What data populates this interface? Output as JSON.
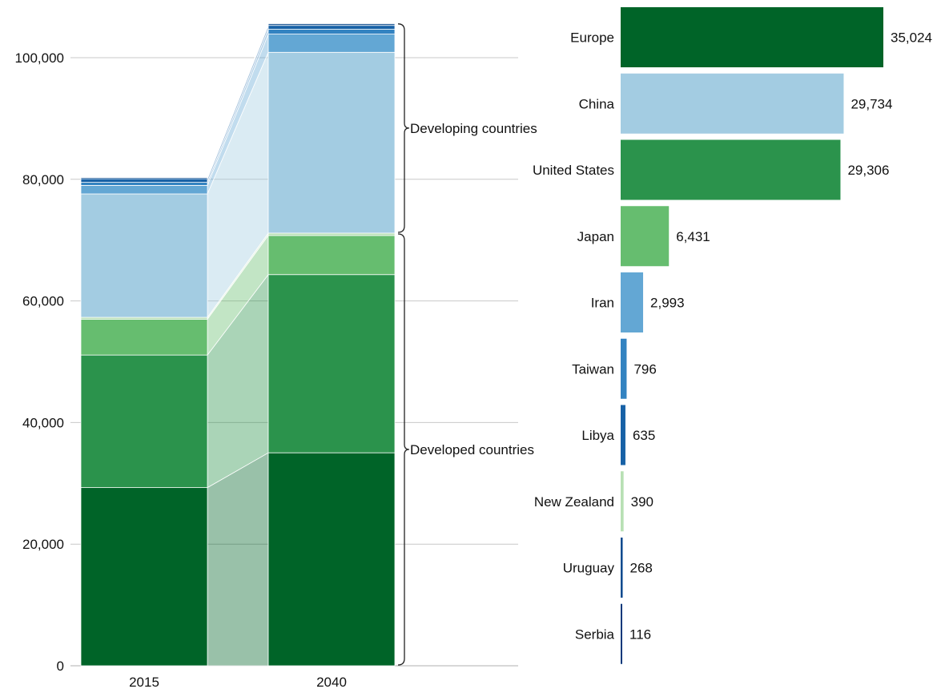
{
  "chart_data": [
    {
      "type": "bar",
      "subtype": "stacked-column",
      "categories": [
        "2015",
        "2040"
      ],
      "ylim": [
        0,
        105000
      ],
      "yticks": [
        0,
        20000,
        40000,
        60000,
        80000,
        100000
      ],
      "ytick_labels": [
        "0",
        "20,000",
        "40,000",
        "60,000",
        "80,000",
        "100,000"
      ],
      "grid": true,
      "segments": [
        {
          "color": "#006428",
          "values": [
            29300,
            35024
          ]
        },
        {
          "color": "#2b934c",
          "values": [
            21800,
            29306
          ]
        },
        {
          "color": "#66bd6f",
          "values": [
            5900,
            6431
          ]
        },
        {
          "color": "#b8e0b4",
          "values": [
            300,
            390
          ]
        },
        {
          "color": "#a3cce2",
          "values": [
            20300,
            29734
          ]
        },
        {
          "color": "#63a7d4",
          "values": [
            1400,
            2993
          ]
        },
        {
          "color": "#3383c1",
          "values": [
            500,
            796
          ]
        },
        {
          "color": "#1761a6",
          "values": [
            600,
            635
          ]
        },
        {
          "color": "#0a4a8e",
          "values": [
            200,
            268
          ]
        },
        {
          "color": "#07387a",
          "values": [
            100,
            116
          ]
        }
      ],
      "groups": [
        {
          "label": "Developed countries",
          "range": [
            0,
            71151
          ]
        },
        {
          "label": "Developing countries",
          "range": [
            71151,
            105693
          ]
        }
      ]
    },
    {
      "type": "bar",
      "orientation": "horizontal",
      "categories": [
        "Europe",
        "China",
        "United States",
        "Japan",
        "Iran",
        "Taiwan",
        "Libya",
        "New Zealand",
        "Uruguay",
        "Serbia"
      ],
      "values": [
        35024,
        29734,
        29306,
        6431,
        2993,
        796,
        635,
        390,
        268,
        116
      ],
      "value_labels": [
        "35,024",
        "29,734",
        "29,306",
        "6,431",
        "2,993",
        "796",
        "635",
        "390",
        "268",
        "116"
      ],
      "colors": [
        "#006428",
        "#a3cce2",
        "#2b934c",
        "#66bd6f",
        "#63a7d4",
        "#3383c1",
        "#1761a6",
        "#b8e0b4",
        "#0a4a8e",
        "#07387a"
      ]
    }
  ]
}
